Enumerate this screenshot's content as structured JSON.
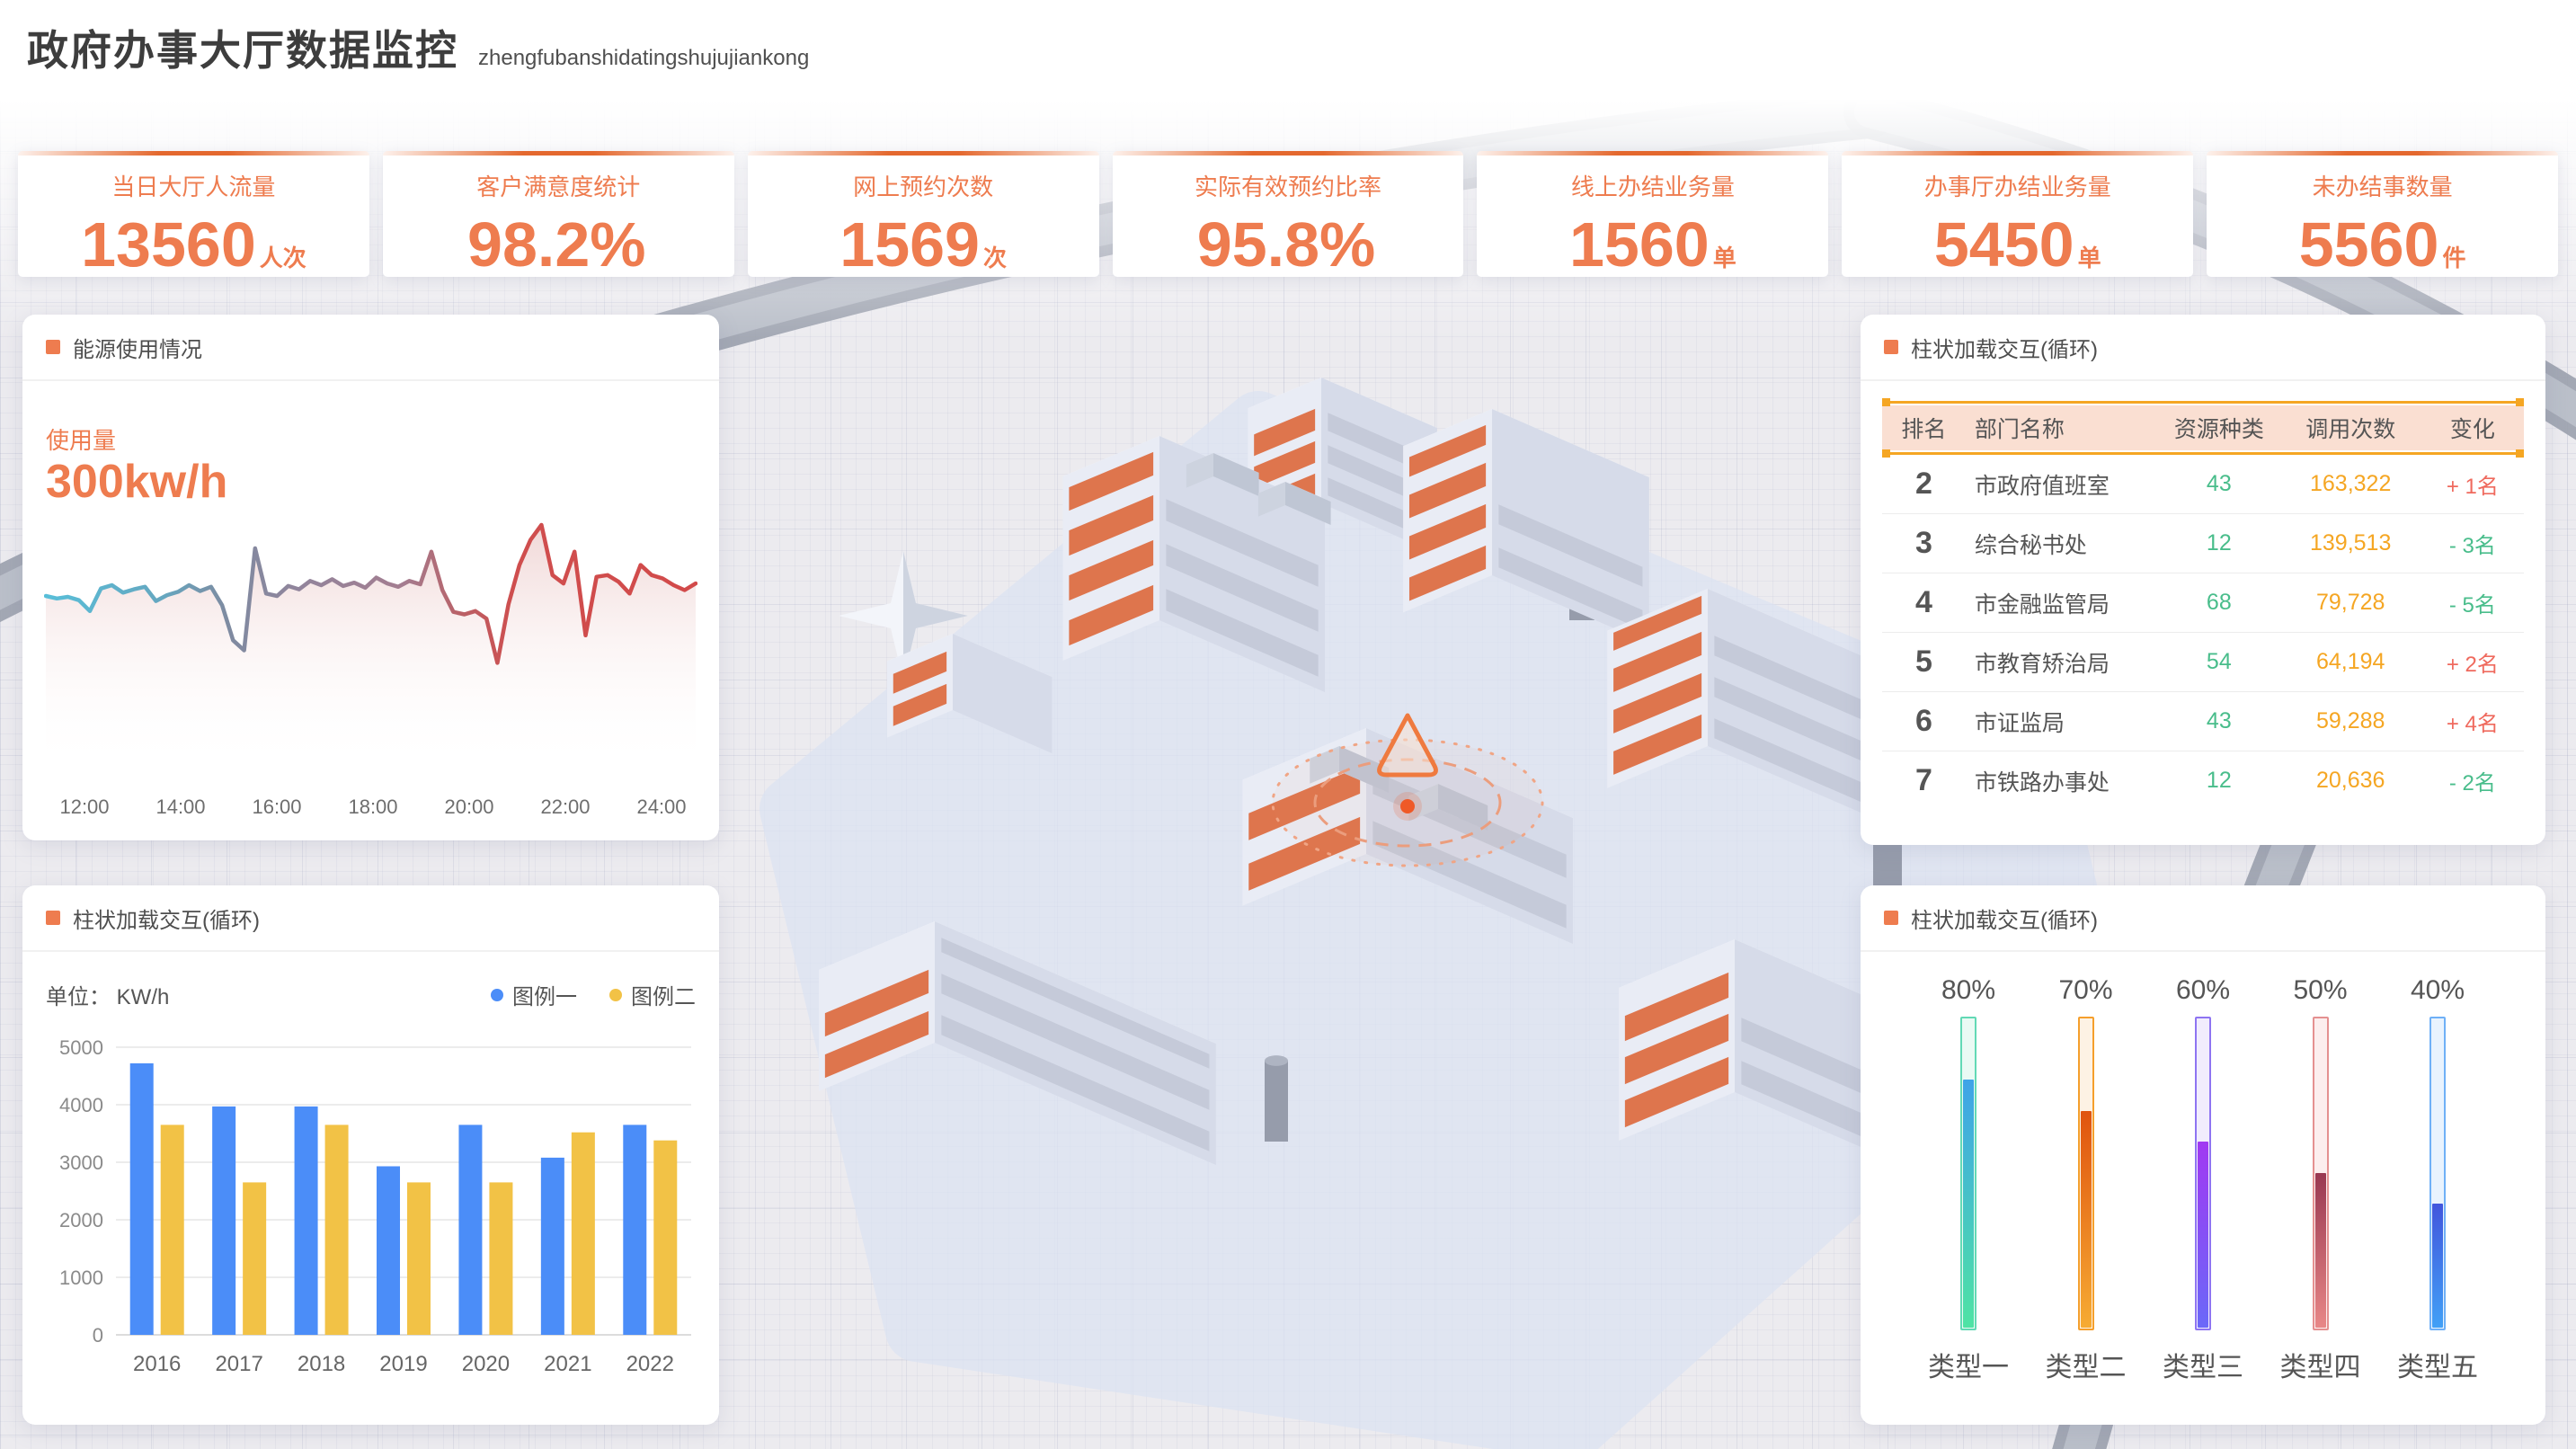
{
  "header": {
    "title": "政府办事大厅数据监控",
    "subtitle": "zhengfubanshidatingshujujiankong"
  },
  "accent_color": "#ee7c4f",
  "kpi_cards": [
    {
      "label": "当日大厅人流量",
      "value": "13560",
      "unit": "人次"
    },
    {
      "label": "客户满意度统计",
      "value": "98.2%",
      "unit": ""
    },
    {
      "label": "网上预约次数",
      "value": "1569",
      "unit": "次"
    },
    {
      "label": "实际有效预约比率",
      "value": "95.8%",
      "unit": ""
    },
    {
      "label": "线上办结业务量",
      "value": "1560",
      "unit": "单"
    },
    {
      "label": "办事厅办结业务量",
      "value": "5450",
      "unit": "单"
    },
    {
      "label": "未办结事数量",
      "value": "5560",
      "unit": "件"
    }
  ],
  "energy_panel": {
    "title": "能源使用情况",
    "metric_label": "使用量",
    "metric_value": "300kw/h"
  },
  "bar_panel": {
    "title": "柱状加载交互(循环)",
    "unit_label": "单位： KW/h",
    "legend": [
      "图例一",
      "图例二"
    ]
  },
  "table_panel": {
    "title": "柱状加载交互(循环)",
    "columns": [
      "排名",
      "部门名称",
      "资源种类",
      "调用次数",
      "变化"
    ],
    "up_color": "#ef6a5e",
    "down_color": "#49bd8b",
    "rows": [
      {
        "rank": "2",
        "name": "市政府值班室",
        "types": "43",
        "calls": "163,322",
        "change": "+ 1名"
      },
      {
        "rank": "3",
        "name": "综合秘书处",
        "types": "12",
        "calls": "139,513",
        "change": "- 3名"
      },
      {
        "rank": "4",
        "name": "市金融监管局",
        "types": "68",
        "calls": "79,728",
        "change": "- 5名"
      },
      {
        "rank": "5",
        "name": "市教育矫治局",
        "types": "54",
        "calls": "64,194",
        "change": "+ 2名"
      },
      {
        "rank": "6",
        "name": "市证监局",
        "types": "43",
        "calls": "59,288",
        "change": "+ 4名"
      },
      {
        "rank": "7",
        "name": "市铁路办事处",
        "types": "12",
        "calls": "20,636",
        "change": "- 2名"
      }
    ]
  },
  "gauge_panel": {
    "title": "柱状加载交互(循环)",
    "items": [
      {
        "label": "类型一",
        "percent": "80%",
        "value": 80,
        "border": "#62d9b5",
        "track": "#eafaf4",
        "top": "#3fa3e8",
        "bottom": "#4fe3a4"
      },
      {
        "label": "类型二",
        "percent": "70%",
        "value": 70,
        "border": "#f59f2c",
        "track": "#fdf2e4",
        "top": "#e0540f",
        "bottom": "#f6ab33"
      },
      {
        "label": "类型三",
        "percent": "60%",
        "value": 60,
        "border": "#8e74f2",
        "track": "#f1edfd",
        "top": "#a139f2",
        "bottom": "#6b68f8"
      },
      {
        "label": "类型四",
        "percent": "50%",
        "value": 50,
        "border": "#e49090",
        "track": "#fceeee",
        "top": "#993851",
        "bottom": "#e88787"
      },
      {
        "label": "类型五",
        "percent": "40%",
        "value": 40,
        "border": "#6fb0f7",
        "track": "#e9f3fe",
        "top": "#4156dd",
        "bottom": "#41a0f6"
      }
    ]
  },
  "chart_data": [
    {
      "type": "line",
      "title": "能源使用情况",
      "ylabel": "使用量 (kw/h)",
      "current_value": 300,
      "x_labels": [
        "12:00",
        "14:00",
        "16:00",
        "18:00",
        "20:00",
        "22:00",
        "24:00"
      ],
      "x_interval_minutes": 15,
      "ylim": [
        0,
        340
      ],
      "grid": false,
      "values": [
        215,
        212,
        214,
        210,
        197,
        224,
        228,
        219,
        223,
        226,
        209,
        216,
        220,
        228,
        221,
        226,
        204,
        162,
        150,
        272,
        218,
        215,
        227,
        223,
        233,
        228,
        235,
        227,
        231,
        225,
        237,
        230,
        226,
        233,
        229,
        268,
        222,
        196,
        193,
        197,
        188,
        135,
        205,
        252,
        282,
        300,
        240,
        230,
        268,
        168,
        238,
        240,
        232,
        218,
        252,
        240,
        236,
        228,
        222,
        230
      ]
    },
    {
      "type": "bar",
      "title": "柱状加载交互(循环)",
      "ylabel": "KW/h",
      "categories": [
        "2016",
        "2017",
        "2018",
        "2019",
        "2020",
        "2021",
        "2022"
      ],
      "series": [
        {
          "name": "图例一",
          "color": "#4b8df8",
          "values": [
            4720,
            3970,
            3970,
            2930,
            3650,
            3080,
            3650
          ]
        },
        {
          "name": "图例二",
          "color": "#f2c246",
          "values": [
            3650,
            2650,
            3650,
            2650,
            2650,
            3520,
            3380
          ]
        }
      ],
      "ylim": [
        0,
        5000
      ],
      "ytick_step": 1000,
      "grid": true,
      "legend_position": "top-right"
    },
    {
      "type": "bar",
      "title": "柱状加载交互(循环)",
      "categories": [
        "类型一",
        "类型二",
        "类型三",
        "类型四",
        "类型五"
      ],
      "values": [
        80,
        70,
        60,
        50,
        40
      ],
      "unit": "%",
      "ylim": [
        0,
        100
      ]
    }
  ]
}
